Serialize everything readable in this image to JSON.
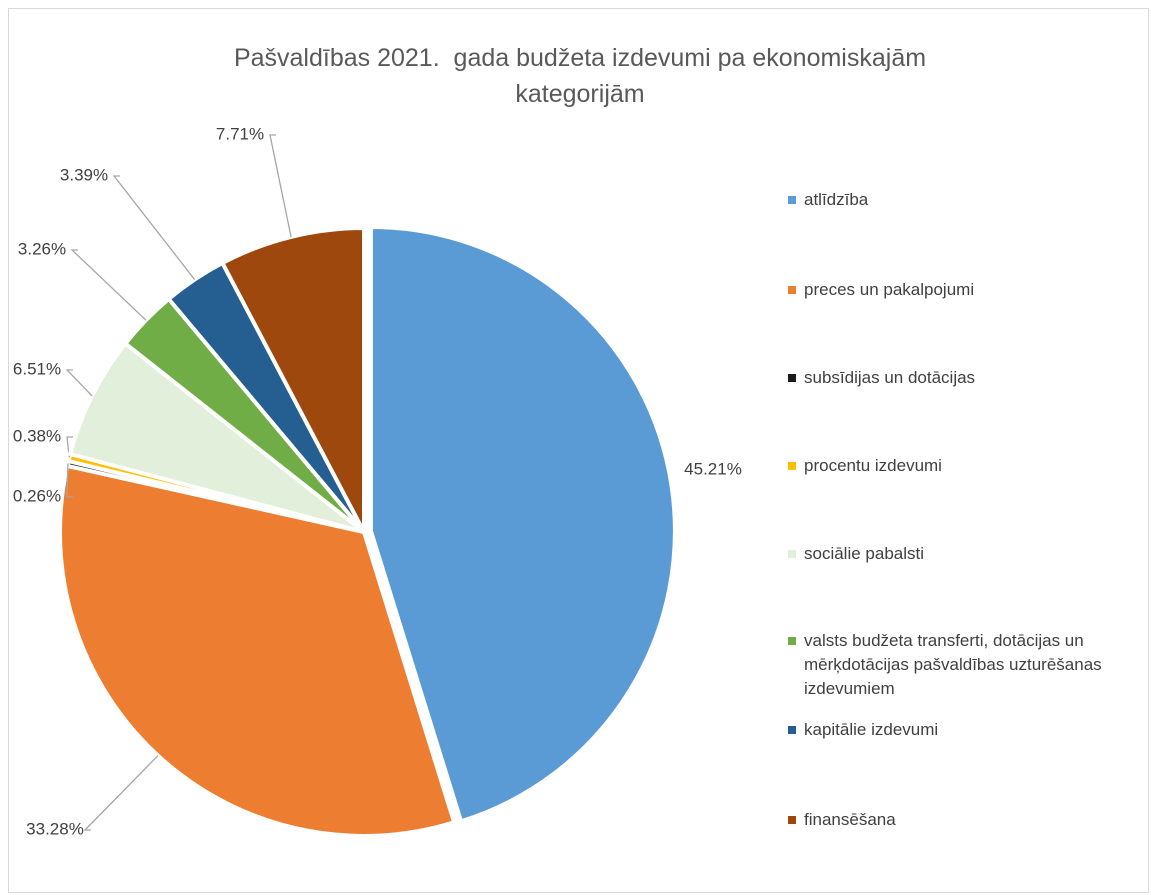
{
  "chart_data": {
    "type": "pie",
    "title": "Pašvaldības 2021.  gada budžeta izdevumi pa ekonomiskajām kategorijām",
    "categories": [
      "atlīdzība",
      "preces un pakalpojumi",
      "subsīdijas un dotācijas",
      "procentu izdevumi",
      "sociālie pabalsti",
      "valsts budžeta transferti, dotācijas un mērķdotācijas pašvaldības uzturēšanas izdevumiem",
      "kapitālie izdevumi",
      "finansēšana"
    ],
    "values": [
      45.21,
      33.28,
      0.26,
      0.38,
      6.51,
      3.26,
      3.39,
      7.71
    ],
    "value_labels": [
      "45.21%",
      "33.28%",
      "0.26%",
      "0.38%",
      "6.51%",
      "3.26%",
      "3.39%",
      "7.71%"
    ],
    "colors": [
      "#5b9bd5",
      "#ed7d31",
      "#1a1a1a",
      "#ffc000",
      "#e2efda",
      "#70ad47",
      "#255e91",
      "#9e480e"
    ]
  }
}
